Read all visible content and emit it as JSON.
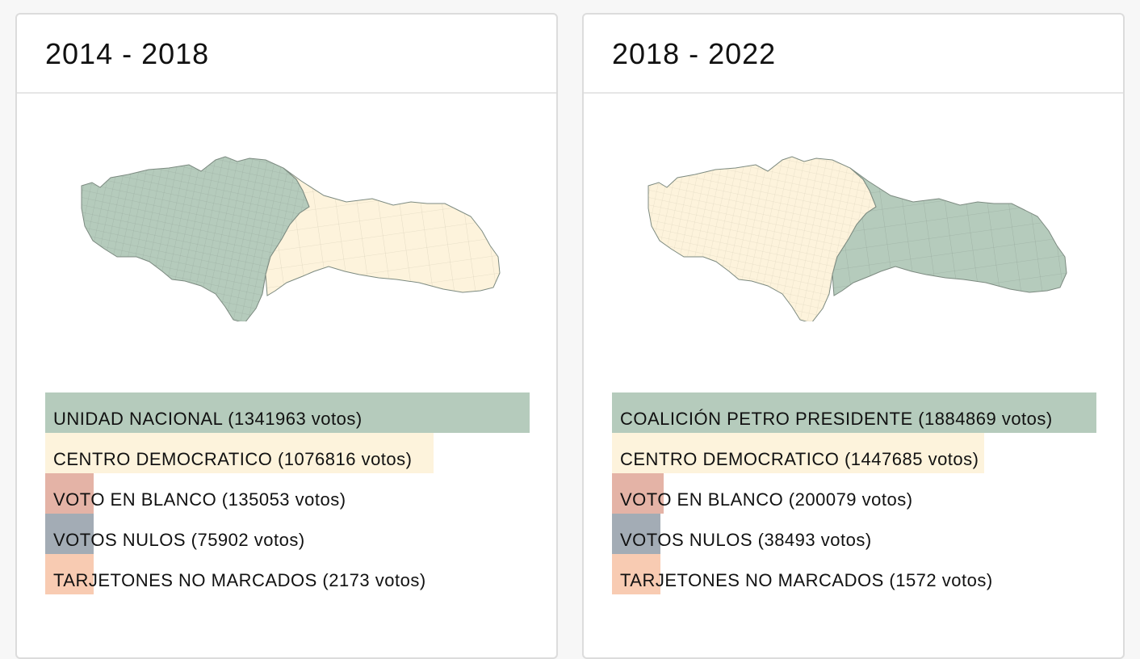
{
  "colors": {
    "green": "#b5cbbc",
    "cream": "#fdf3dc",
    "pink": "#e4b3a6",
    "gray": "#a3acb5",
    "peach": "#f8cbb2",
    "map_border": "#7c8a80"
  },
  "cards": [
    {
      "title": "2014 - 2018",
      "map_colors": {
        "west": "#b5cbbc",
        "east": "#fdf3dc"
      },
      "bars": [
        {
          "label": "UNIDAD NACIONAL (1341963 votos)",
          "votes": 1341963,
          "color": "#b5cbbc"
        },
        {
          "label": "CENTRO DEMOCRATICO (1076816 votos)",
          "votes": 1076816,
          "color": "#fdf3dc"
        },
        {
          "label": "VOTO EN BLANCO (135053 votos)",
          "votes": 135053,
          "color": "#e4b3a6"
        },
        {
          "label": "VOTOS NULOS (75902 votos)",
          "votes": 75902,
          "color": "#a3acb5"
        },
        {
          "label": "TARJETONES NO MARCADOS (2173 votos)",
          "votes": 2173,
          "color": "#f8cbb2"
        }
      ]
    },
    {
      "title": "2018 - 2022",
      "map_colors": {
        "west": "#fdf3dc",
        "east": "#b5cbbc"
      },
      "bars": [
        {
          "label": "COALICIÓN PETRO PRESIDENTE (1884869 votos)",
          "votes": 1884869,
          "color": "#b5cbbc"
        },
        {
          "label": "CENTRO DEMOCRATICO (1447685 votos)",
          "votes": 1447685,
          "color": "#fdf3dc"
        },
        {
          "label": "VOTO EN BLANCO (200079 votos)",
          "votes": 200079,
          "color": "#e4b3a6"
        },
        {
          "label": "VOTOS NULOS (38493 votos)",
          "votes": 38493,
          "color": "#a3acb5"
        },
        {
          "label": "TARJETONES NO MARCADOS (1572 votos)",
          "votes": 1572,
          "color": "#f8cbb2"
        }
      ]
    }
  ]
}
